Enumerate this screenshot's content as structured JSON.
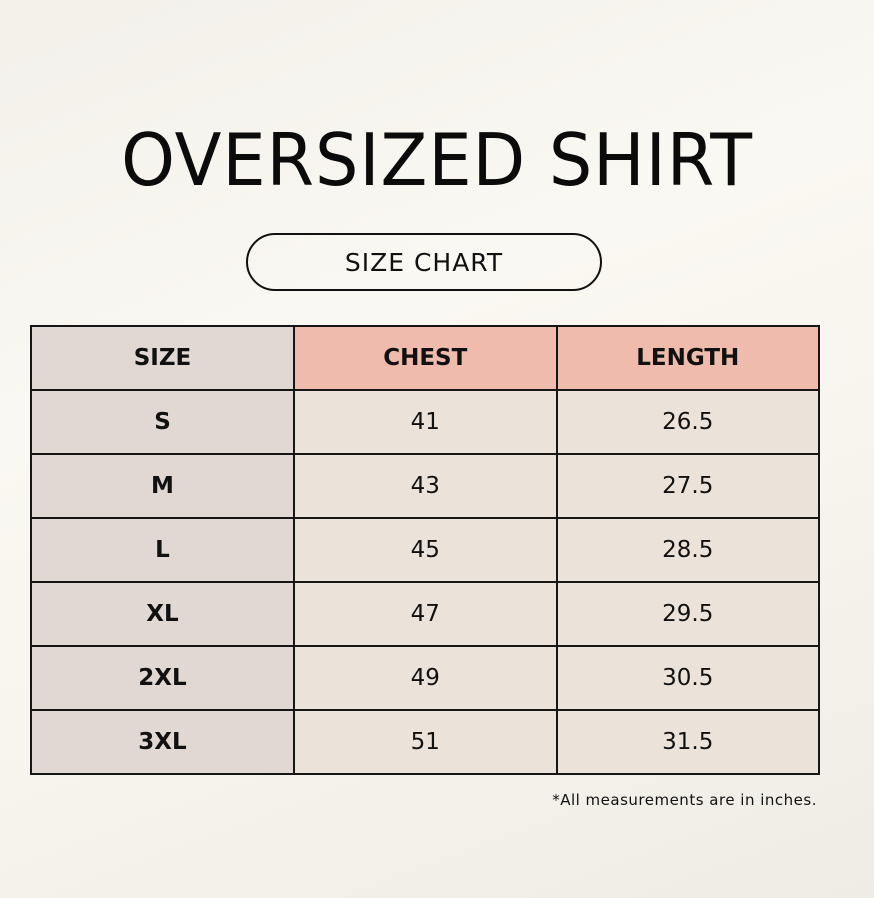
{
  "title": "OVERSIZED SHIRT",
  "badge": "SIZE CHART",
  "colors": {
    "size_column": "#e1d8d3",
    "header_highlight": "#eebbad",
    "cell": "#ebe3d9",
    "border": "#161616"
  },
  "table": {
    "headers": [
      "SIZE",
      "CHEST",
      "LENGTH"
    ],
    "rows": [
      [
        "S",
        "41",
        "26.5"
      ],
      [
        "M",
        "43",
        "27.5"
      ],
      [
        "L",
        "45",
        "28.5"
      ],
      [
        "XL",
        "47",
        "29.5"
      ],
      [
        "2XL",
        "49",
        "30.5"
      ],
      [
        "3XL",
        "51",
        "31.5"
      ]
    ]
  },
  "note": "*All measurements are in inches."
}
